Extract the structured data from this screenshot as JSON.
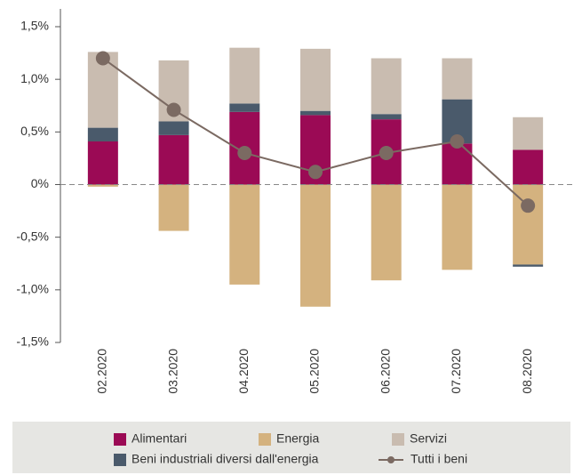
{
  "chart_data": {
    "type": "bar",
    "categories": [
      "02.2020",
      "03.2020",
      "04.2020",
      "05.2020",
      "06.2020",
      "07.2020",
      "08.2020"
    ],
    "series": [
      {
        "name": "Alimentari",
        "color": "#9b0a55",
        "values": [
          0.41,
          0.47,
          0.69,
          0.66,
          0.62,
          0.39,
          0.33
        ]
      },
      {
        "name": "Energia",
        "color": "#d4b27f",
        "values": [
          -0.02,
          -0.44,
          -0.95,
          -1.16,
          -0.91,
          -0.81,
          -0.76
        ]
      },
      {
        "name": "Servizi",
        "color": "#c9bcb0",
        "values": [
          0.72,
          0.58,
          0.53,
          0.59,
          0.53,
          0.39,
          0.31
        ]
      },
      {
        "name": "Beni industriali diversi dall'energia",
        "color": "#4a5a6b",
        "values": [
          0.13,
          0.13,
          0.08,
          0.04,
          0.05,
          0.42,
          -0.02
        ]
      },
      {
        "name": "Tutti i beni",
        "color": "#7b6a62",
        "type": "line",
        "values": [
          1.2,
          0.71,
          0.3,
          0.12,
          0.3,
          0.41,
          -0.2
        ]
      }
    ],
    "ylim": [
      -1.5,
      1.5
    ],
    "yticks": [
      {
        "value": -1.5,
        "label": "-1,5%"
      },
      {
        "value": -1.0,
        "label": "-1,0%"
      },
      {
        "value": -0.5,
        "label": "-0,5%"
      },
      {
        "value": 0,
        "label": "0%"
      },
      {
        "value": 0.5,
        "label": "0,5%"
      },
      {
        "value": 1.0,
        "label": "1,0%"
      },
      {
        "value": 1.5,
        "label": "1,5%"
      }
    ],
    "grid": false
  }
}
